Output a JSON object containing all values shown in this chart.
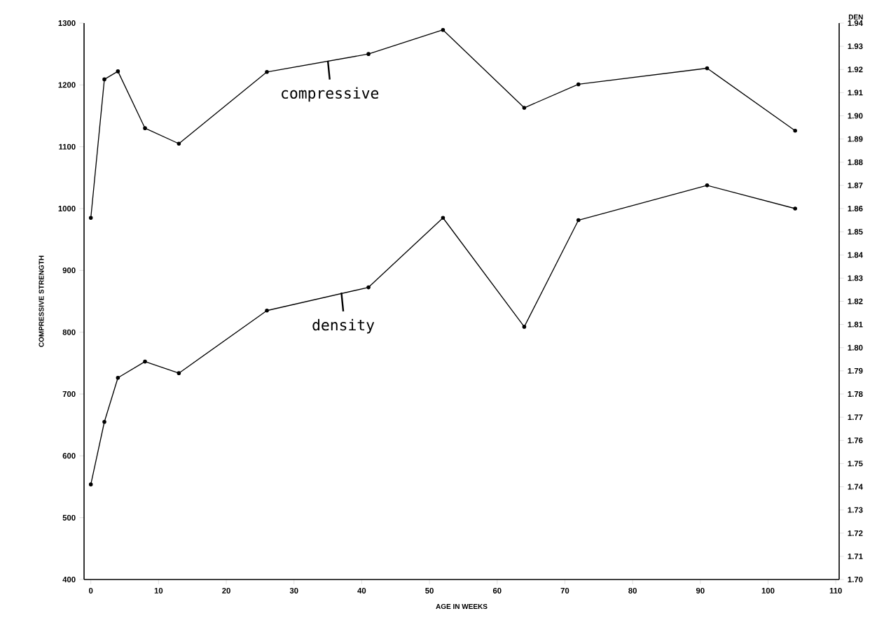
{
  "chart_data": {
    "type": "line",
    "xlabel": "AGE IN WEEKS",
    "ylabel": "COMPRESSIVE STRENGTH",
    "y2label": "DEN",
    "x": [
      0,
      2,
      4,
      8,
      13,
      26,
      41,
      52,
      64,
      72,
      91,
      104
    ],
    "series": [
      {
        "color": "#000000",
        "values": [
          985,
          1209,
          1222,
          1130,
          1105,
          1221,
          1250,
          1289,
          1163,
          1201,
          1227,
          1126
        ]
      },
      {
        "color": "#000000",
        "axis": "y2",
        "values": [
          1.741,
          1.768,
          1.787,
          1.794,
          1.789,
          1.816,
          1.826,
          1.856,
          1.809,
          1.855,
          1.87,
          1.86
        ]
      }
    ],
    "xlim": [
      -1,
      110.5
    ],
    "xticks": [
      0,
      10,
      20,
      30,
      40,
      50,
      60,
      70,
      80,
      90,
      100,
      110
    ],
    "ylim": [
      400,
      1300
    ],
    "yticks": [
      400,
      500,
      600,
      700,
      800,
      900,
      1000,
      1100,
      1200,
      1300
    ],
    "y2lim": [
      1.7,
      1.94
    ],
    "y2ticks": [
      1.94,
      1.93,
      1.92,
      1.91,
      {
        "value": 1.9,
        "label": "1.90"
      },
      1.89,
      1.88,
      1.87,
      1.86,
      1.85,
      1.84,
      1.83,
      1.82,
      1.81,
      {
        "value": 1.8,
        "label": "1.80"
      },
      1.79,
      1.78,
      1.77,
      1.76,
      1.75,
      1.74,
      1.73,
      1.72,
      1.71,
      {
        "value": 1.7,
        "label": "1.70"
      }
    ],
    "marker": "circle",
    "line_style": "solid",
    "annotations": [
      {
        "text": "compressive",
        "x": 35,
        "y": 1239
      },
      {
        "text": "density",
        "x": 37,
        "y": 864
      }
    ]
  }
}
